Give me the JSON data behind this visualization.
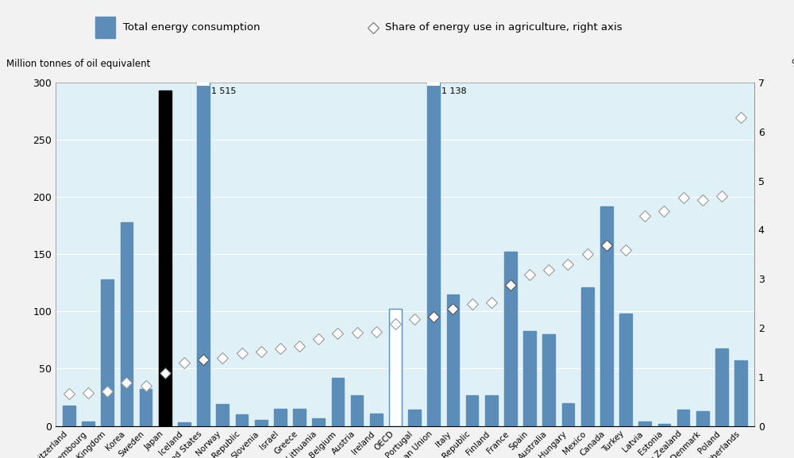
{
  "countries": [
    "Switzerland",
    "Luxembourg",
    "United Kingdom",
    "Korea",
    "Sweden",
    "Japan",
    "Iceland",
    "United States",
    "Norway",
    "Slovak Republic",
    "Slovenia",
    "Israel",
    "Greece",
    "Lithuania",
    "Belgium",
    "Austria",
    "Ireland",
    "OECD",
    "Portugal",
    "European Union",
    "Italy",
    "Czech Republic",
    "Finland",
    "France",
    "Spain",
    "Australia",
    "Hungary",
    "Mexico",
    "Canada",
    "Turkey",
    "Latvia",
    "Estonia",
    "New Zealand",
    "Denmark",
    "Poland",
    "Netherlands"
  ],
  "bar_values": [
    18,
    4,
    128,
    178,
    32,
    293,
    3,
    300,
    19,
    10,
    5,
    15,
    15,
    7,
    42,
    27,
    11,
    102,
    14,
    300,
    115,
    27,
    27,
    152,
    83,
    80,
    20,
    121,
    192,
    98,
    4,
    2,
    14,
    13,
    68,
    57
  ],
  "bar_colors": [
    "#5b8db8",
    "#5b8db8",
    "#5b8db8",
    "#5b8db8",
    "#5b8db8",
    "#000000",
    "#5b8db8",
    "#5b8db8",
    "#5b8db8",
    "#5b8db8",
    "#5b8db8",
    "#5b8db8",
    "#5b8db8",
    "#5b8db8",
    "#5b8db8",
    "#5b8db8",
    "#5b8db8",
    "#ffffff",
    "#5b8db8",
    "#5b8db8",
    "#5b8db8",
    "#5b8db8",
    "#5b8db8",
    "#5b8db8",
    "#5b8db8",
    "#5b8db8",
    "#5b8db8",
    "#5b8db8",
    "#5b8db8",
    "#5b8db8",
    "#5b8db8",
    "#5b8db8",
    "#5b8db8",
    "#5b8db8",
    "#5b8db8",
    "#5b8db8"
  ],
  "diamond_values": [
    0.65,
    0.68,
    0.7,
    0.88,
    0.82,
    1.08,
    1.28,
    1.35,
    1.38,
    1.48,
    1.52,
    1.58,
    1.62,
    1.78,
    1.88,
    1.9,
    1.92,
    2.08,
    2.18,
    2.22,
    2.38,
    2.48,
    2.52,
    2.88,
    3.08,
    3.18,
    3.3,
    3.5,
    3.68,
    3.58,
    4.28,
    4.38,
    4.65,
    4.6,
    4.68,
    6.28
  ],
  "diamond_filled": [
    false,
    false,
    false,
    false,
    false,
    true,
    false,
    true,
    false,
    false,
    false,
    false,
    false,
    false,
    false,
    false,
    false,
    false,
    false,
    true,
    true,
    false,
    false,
    true,
    false,
    false,
    false,
    false,
    true,
    false,
    false,
    false,
    false,
    false,
    false,
    false
  ],
  "ylim_left": [
    0,
    300
  ],
  "ylim_right": [
    0,
    7
  ],
  "yticks_left": [
    0,
    50,
    100,
    150,
    200,
    250,
    300
  ],
  "yticks_right": [
    0,
    1,
    2,
    3,
    4,
    5,
    6,
    7
  ],
  "ylabel_left": "Million tonnes of oil equivalent",
  "ylabel_right": "%",
  "legend_bar_label": "Total energy consumption",
  "legend_diamond_label": "Share of energy use in agriculture, right axis",
  "bar_color_main": "#5b8db8",
  "bar_color_japan": "#000000",
  "bar_color_oecd_face": "#ffffff",
  "bar_edgecolor_oecd": "#5b8db8",
  "background_color": "#dff0f7",
  "fig_background": "#f2f2f2",
  "legend_background": "#e8e8e8",
  "annotation_us": "1 515",
  "annotation_eu": "1 138",
  "us_idx": 7,
  "eu_idx": 19
}
